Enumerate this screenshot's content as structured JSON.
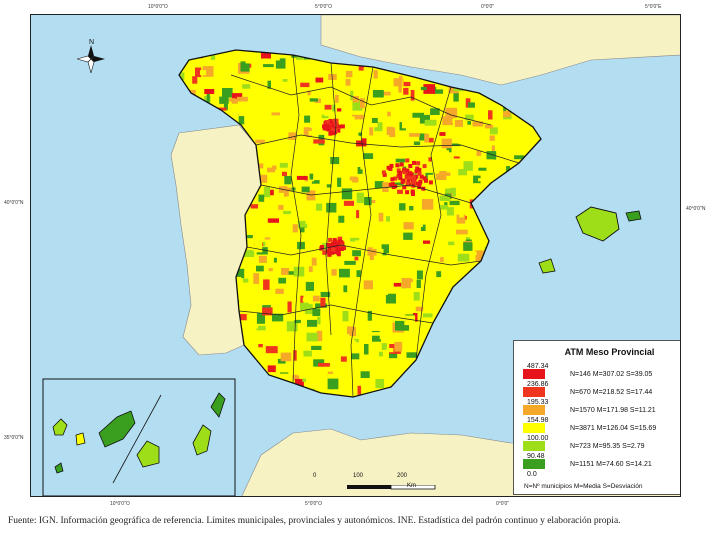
{
  "coordinates": {
    "top": [
      "10°0'0\"O",
      "5°0'0\"O",
      "0°0'0\"",
      "5°0'0\"E"
    ],
    "bottom": [
      "10°0'0\"O",
      "5°0'0\"O",
      "0°0'0\""
    ],
    "left": [
      "40°0'0\"N",
      "35°0'0\"N"
    ],
    "right": [
      "40°0'0\"N"
    ]
  },
  "north_arrow": {
    "label": "N",
    "icon": "compass-rose-icon"
  },
  "legend": {
    "title": "ATM Meso Provincial",
    "breaks": [
      "487.34",
      "236.86",
      "195.33",
      "154.98",
      "100.00",
      "90.48",
      "0.0"
    ],
    "classes": [
      {
        "stat": "N=146 M=307.02 S=39.05",
        "color": "#e8141b"
      },
      {
        "stat": "N=670 M=218.52 S=17.44",
        "color": "#f0351f"
      },
      {
        "stat": "N=1570 M=171.98 S=11.21",
        "color": "#f6a928"
      },
      {
        "stat": "N=3871 M=126.04 S=15.69",
        "color": "#ffff00"
      },
      {
        "stat": "N=723 M=95.35 S=2.79",
        "color": "#9ede19"
      },
      {
        "stat": "N=1151 M=74.60 S=14.21",
        "color": "#3a9e1e"
      }
    ],
    "note": "N=Nº municipios M=Media S=Desviación"
  },
  "scale": {
    "labels": [
      "0",
      "100",
      "200"
    ],
    "unit": "Km"
  },
  "colors": {
    "sea": "#b3def2",
    "neighbour_land": "#f6f2c4",
    "border": "#111111"
  },
  "caption": "Fuente: IGN. Información geográfica de referencia. Límites municipales, provinciales y autonómicos. INE. Estadística del padrón continuo y elaboración propia."
}
